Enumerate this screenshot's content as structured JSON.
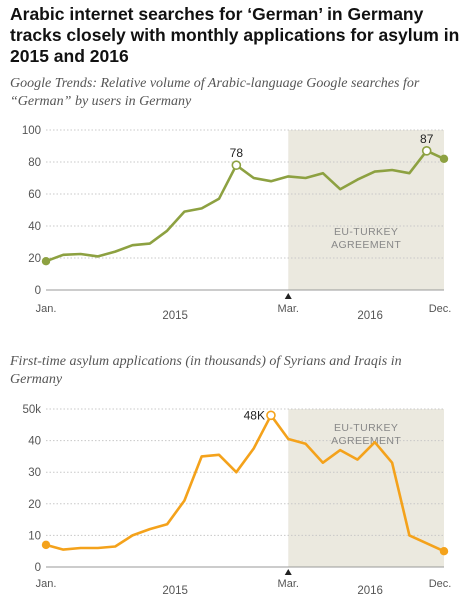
{
  "header": {
    "title_lines": [
      "Arabic internet searches for ‘German’ in Germany",
      "tracks closely with monthly applications for asylum in",
      "2015 and 2016"
    ]
  },
  "colors": {
    "trends_line": "#8da141",
    "asylum_line": "#f4a21b",
    "shade": "#ebe9df",
    "shade_text": "#888888"
  },
  "chart_data": [
    {
      "type": "line",
      "subtitle_lines": [
        "Google Trends: Relative volume of Arabic-language Google searches for",
        "“German” by users in Germany"
      ],
      "x": [
        "2015-01",
        "2015-02",
        "2015-03",
        "2015-04",
        "2015-05",
        "2015-06",
        "2015-07",
        "2015-08",
        "2015-09",
        "2015-10",
        "2015-11",
        "2015-12",
        "2016-01",
        "2016-02",
        "2016-03",
        "2016-04",
        "2016-05",
        "2016-06",
        "2016-07",
        "2016-08",
        "2016-09",
        "2016-10",
        "2016-11",
        "2016-12"
      ],
      "series": [
        {
          "values": [
            18,
            22,
            22.5,
            21,
            24,
            28,
            29,
            37,
            49,
            51,
            57,
            78,
            70,
            68,
            71,
            70,
            73,
            63,
            69,
            74,
            75,
            73,
            87,
            82
          ]
        }
      ],
      "ylim": [
        0,
        100
      ],
      "yticks": [
        "0",
        "20",
        "40",
        "60",
        "80",
        "100"
      ],
      "x_labels": {
        "start": "Jan.",
        "mid": "Mar.",
        "end": "Dec.",
        "year1": "2015",
        "year2": "2016"
      },
      "shaded_from": "2016-03",
      "shaded_label": [
        "EU-TURKEY",
        "AGREEMENT"
      ],
      "annotations": [
        {
          "x": "2015-12",
          "label": "78"
        },
        {
          "x": "2016-11",
          "label": "87"
        }
      ],
      "grid": true
    },
    {
      "type": "line",
      "subtitle_lines": [
        "First-time asylum applications (in thousands) of Syrians and Iraqis in",
        "Germany"
      ],
      "x": [
        "2015-01",
        "2015-02",
        "2015-03",
        "2015-04",
        "2015-05",
        "2015-06",
        "2015-07",
        "2015-08",
        "2015-09",
        "2015-10",
        "2015-11",
        "2015-12",
        "2016-01",
        "2016-02",
        "2016-03",
        "2016-04",
        "2016-05",
        "2016-06",
        "2016-07",
        "2016-08",
        "2016-09",
        "2016-10",
        "2016-11",
        "2016-12"
      ],
      "series": [
        {
          "values": [
            7,
            5.5,
            6,
            6,
            6.5,
            10,
            12,
            13.5,
            21,
            35,
            35.5,
            30,
            37.5,
            48,
            40.5,
            39,
            33,
            37,
            34,
            39.5,
            33,
            10,
            7.5,
            5
          ]
        }
      ],
      "ylim": [
        0,
        50
      ],
      "yticks": [
        "0",
        "10",
        "20",
        "30",
        "40",
        "50k"
      ],
      "x_labels": {
        "start": "Jan.",
        "mid": "Mar.",
        "end": "Dec.",
        "year1": "2015",
        "year2": "2016"
      },
      "shaded_from": "2016-03",
      "shaded_label": [
        "EU-TURKEY",
        "AGREEMENT"
      ],
      "annotations": [
        {
          "x": "2016-02",
          "label": "48K"
        }
      ],
      "grid": true
    }
  ]
}
